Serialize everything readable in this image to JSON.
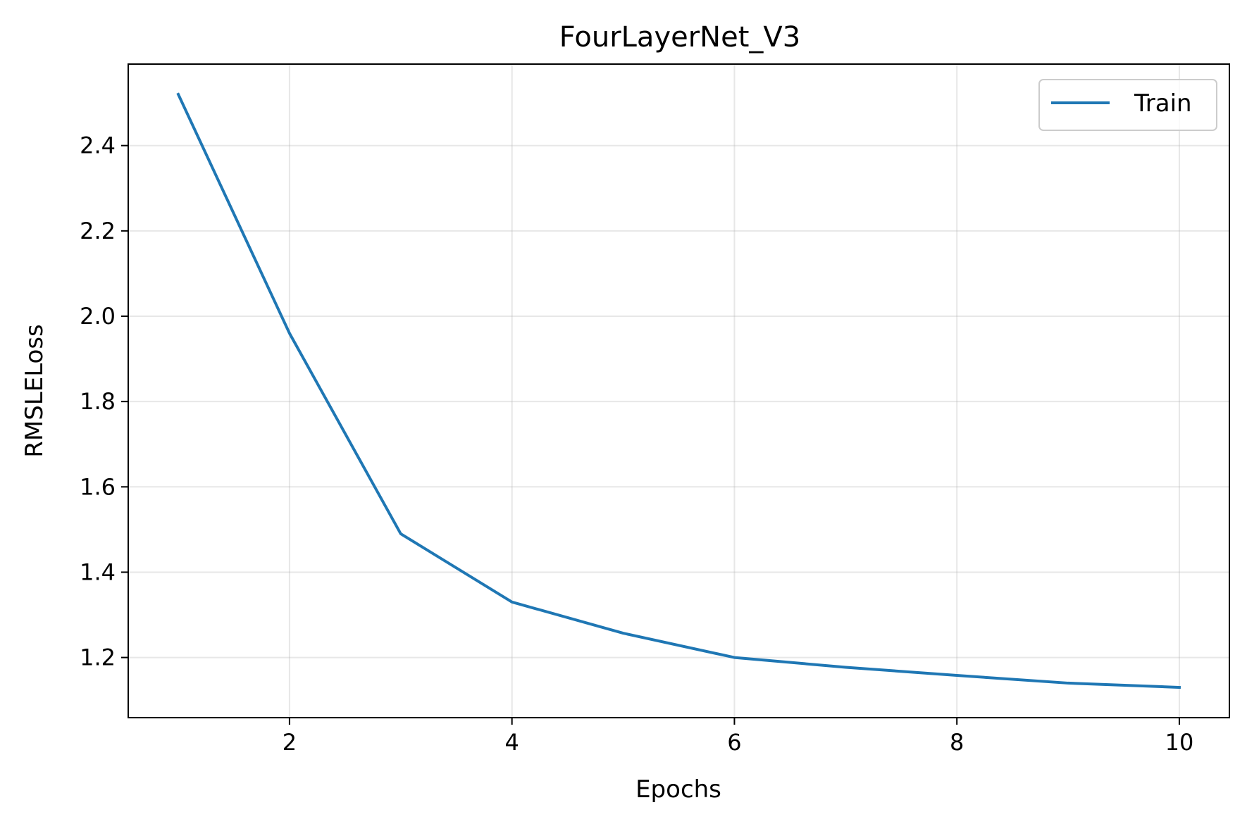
{
  "chart_data": {
    "type": "line",
    "title": "FourLayerNet_V3",
    "xlabel": "Epochs",
    "ylabel": "RMSLELoss",
    "x": [
      1,
      2,
      3,
      4,
      5,
      6,
      7,
      8,
      9,
      10
    ],
    "series": [
      {
        "name": "Train",
        "color": "#1f77b4",
        "values": [
          2.52,
          1.96,
          1.49,
          1.33,
          1.257,
          1.2,
          1.177,
          1.158,
          1.14,
          1.13
        ]
      }
    ],
    "xlim": [
      0.55,
      10.45
    ],
    "ylim": [
      1.059,
      2.591
    ],
    "xticks": [
      2,
      4,
      6,
      8,
      10
    ],
    "yticks": [
      1.2,
      1.4,
      1.6,
      1.8,
      2.0,
      2.2,
      2.4
    ],
    "xtick_labels": [
      "2",
      "4",
      "6",
      "8",
      "10"
    ],
    "ytick_labels": [
      "1.2",
      "1.4",
      "1.6",
      "1.8",
      "2.0",
      "2.2",
      "2.4"
    ],
    "grid": true,
    "legend_position": "top-right"
  }
}
